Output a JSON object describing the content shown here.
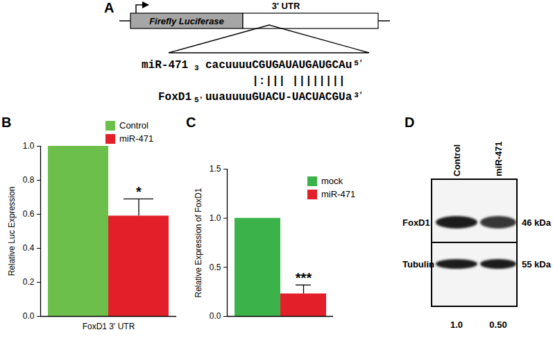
{
  "panel_labels": [
    "A",
    "B",
    "C",
    "D"
  ],
  "construct": {
    "gene_box": "Firefly Luciferase",
    "utr_box": "3' UTR"
  },
  "alignment": {
    "mirna": {
      "name": "miR-471",
      "end_left": "3",
      "sequence": "cacuuuuCGUGAUAUGAUGCAu",
      "end_right": "5'"
    },
    "pairing": "|:||| ||||||||",
    "target": {
      "name": "FoxD1",
      "end_left": "5'",
      "sequence": "uuauuuuGUACU-UACUACGUa",
      "end_right": "3'"
    }
  },
  "chart_data": [
    {
      "type": "bar",
      "categories": [
        "FoxD1 3' UTR"
      ],
      "y_label": "Relative Luc Expression",
      "ylim": [
        0,
        1
      ],
      "yticks": [
        {
          "value": 0,
          "label": "0.0"
        },
        0.2,
        0.4,
        0.6,
        0.8,
        {
          "value": 1,
          "label": "1.0"
        }
      ],
      "legend": "top-right",
      "series": [
        {
          "name": "Control",
          "color": "#6cbf4a",
          "values": [
            1.0
          ]
        },
        {
          "name": "miR-471",
          "color": "#e3202a",
          "values": [
            0.59
          ],
          "errors": [
            0.1
          ],
          "annotation": "*"
        }
      ]
    },
    {
      "type": "bar",
      "y_label": "Relative Expression of FoxD1",
      "ylim": [
        0,
        1.5
      ],
      "yticks": [
        {
          "value": 0,
          "label": "0.0"
        },
        0.5,
        {
          "value": 1,
          "label": "1.0"
        },
        1.5
      ],
      "legend": "top-right",
      "series": [
        {
          "name": "mock",
          "color": "#3cb34a",
          "values": [
            1.0
          ]
        },
        {
          "name": "miR-471",
          "color": "#e3202a",
          "values": [
            0.23
          ],
          "errors": [
            0.09
          ],
          "annotation": "***"
        }
      ]
    }
  ],
  "blot": {
    "lanes": [
      "Control",
      "miR-471"
    ],
    "rows": [
      {
        "protein": "FoxD1",
        "size": "46 kDa"
      },
      {
        "protein": "Tubulin",
        "size": "55 kDa"
      }
    ],
    "quantification": [
      {
        "value": 1,
        "label": "1.0"
      },
      {
        "value": 0.5,
        "label": "0.50"
      }
    ]
  }
}
